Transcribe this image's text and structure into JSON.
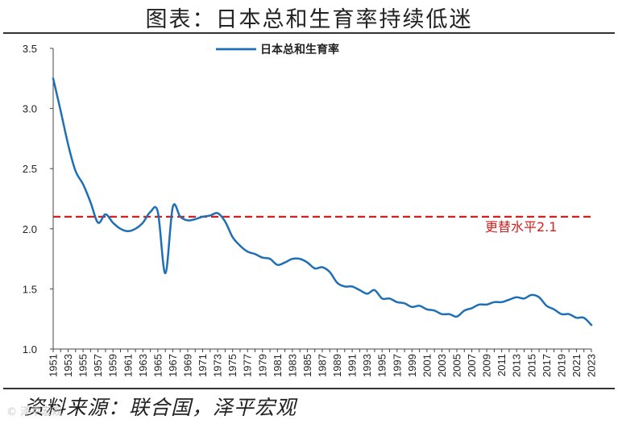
{
  "header": {
    "title": "图表：日本总和生育率持续低迷"
  },
  "footer": {
    "source": "资料来源：联合国，泽平宏观",
    "watermark": "© 泽平宏观"
  },
  "colors": {
    "series": "#1f6fb5",
    "reference": "#d41f1f",
    "axis": "#444444"
  },
  "chart_data": {
    "type": "line",
    "title": "图表：日本总和生育率持续低迷",
    "xlabel": "",
    "ylabel": "",
    "ylim": [
      1.0,
      3.5
    ],
    "yticks": [
      1.0,
      1.5,
      2.0,
      2.5,
      3.0,
      3.5
    ],
    "ytick_labels": [
      "1.0",
      "1.5",
      "2.0",
      "2.5",
      "3.0",
      "3.5"
    ],
    "xlim": [
      1951,
      2023
    ],
    "xtick_labels": [
      "1951",
      "1953",
      "1955",
      "1957",
      "1959",
      "1961",
      "1963",
      "1965",
      "1967",
      "1969",
      "1971",
      "1973",
      "1975",
      "1977",
      "1979",
      "1981",
      "1983",
      "1985",
      "1987",
      "1989",
      "1991",
      "1993",
      "1995",
      "1997",
      "1999",
      "2001",
      "2003",
      "2005",
      "2007",
      "2009",
      "2011",
      "2013",
      "2015",
      "2017",
      "2019",
      "2021",
      "2023"
    ],
    "legend": {
      "placement": "top-center",
      "label": "日本总和生育率"
    },
    "reference_line": {
      "value": 2.1,
      "label": "更替水平2.1",
      "style": "dashed"
    },
    "grid": false,
    "series": [
      {
        "name": "日本总和生育率",
        "x": [
          1951,
          1952,
          1953,
          1954,
          1955,
          1956,
          1957,
          1958,
          1959,
          1960,
          1961,
          1962,
          1963,
          1964,
          1965,
          1966,
          1967,
          1968,
          1969,
          1970,
          1971,
          1972,
          1973,
          1974,
          1975,
          1976,
          1977,
          1978,
          1979,
          1980,
          1981,
          1982,
          1983,
          1984,
          1985,
          1986,
          1987,
          1988,
          1989,
          1990,
          1991,
          1992,
          1993,
          1994,
          1995,
          1996,
          1997,
          1998,
          1999,
          2000,
          2001,
          2002,
          2003,
          2004,
          2005,
          2006,
          2007,
          2008,
          2009,
          2010,
          2011,
          2012,
          2013,
          2014,
          2015,
          2016,
          2017,
          2018,
          2019,
          2020,
          2021,
          2022,
          2023
        ],
        "values": [
          3.25,
          2.98,
          2.7,
          2.48,
          2.37,
          2.22,
          2.05,
          2.12,
          2.05,
          2.0,
          1.98,
          2.0,
          2.05,
          2.14,
          2.14,
          1.63,
          2.18,
          2.1,
          2.07,
          2.08,
          2.1,
          2.11,
          2.13,
          2.06,
          1.93,
          1.86,
          1.81,
          1.79,
          1.76,
          1.75,
          1.7,
          1.72,
          1.75,
          1.75,
          1.72,
          1.67,
          1.68,
          1.64,
          1.55,
          1.52,
          1.52,
          1.49,
          1.46,
          1.49,
          1.42,
          1.42,
          1.39,
          1.38,
          1.35,
          1.36,
          1.33,
          1.32,
          1.29,
          1.29,
          1.27,
          1.32,
          1.34,
          1.37,
          1.37,
          1.39,
          1.39,
          1.41,
          1.43,
          1.42,
          1.45,
          1.43,
          1.36,
          1.33,
          1.29,
          1.29,
          1.26,
          1.26,
          1.2
        ]
      }
    ]
  }
}
